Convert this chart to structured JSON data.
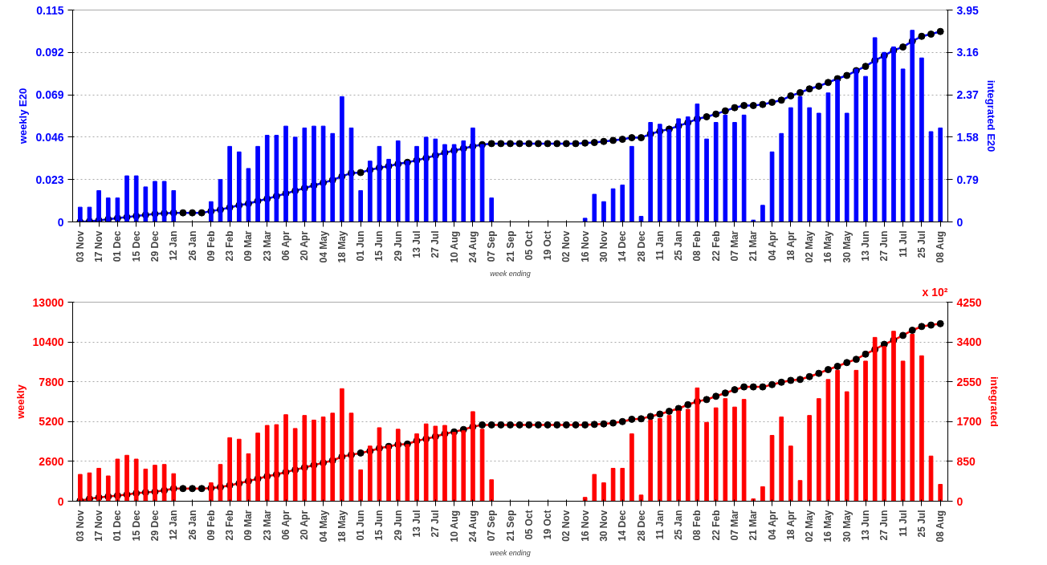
{
  "chart_data": [
    {
      "type": "bar",
      "xlabel": "week ending",
      "ylabel": "weekly E20",
      "y2label": "integrated E20",
      "categories": [
        "03 Nov",
        null,
        "17 Nov",
        null,
        "01 Dec",
        null,
        "15 Dec",
        null,
        "29 Dec",
        null,
        "12 Jan",
        null,
        "26 Jan",
        null,
        "09 Feb",
        null,
        "23 Feb",
        null,
        "09 Mar",
        null,
        "23 Mar",
        null,
        "06 Apr",
        null,
        "20 Apr",
        null,
        "04 May",
        null,
        "18 May",
        null,
        "01 Jun",
        null,
        "15 Jun",
        null,
        "29 Jun",
        null,
        "13 Jul",
        null,
        "27 Jul",
        null,
        "10 Aug",
        null,
        "24 Aug",
        null,
        "07 Sep",
        null,
        "21 Sep",
        null,
        "05 Oct",
        null,
        "19 Oct",
        null,
        "02 Nov",
        null,
        "16 Nov",
        null,
        "30 Nov",
        null,
        "14 Dec",
        null,
        "28 Dec",
        null,
        "11 Jan",
        null,
        "25 Jan",
        null,
        "08 Feb",
        null,
        "22 Feb",
        null,
        "07 Mar",
        null,
        "21 Mar",
        null,
        "04 Apr",
        null,
        "18 Apr",
        null,
        "02 May",
        null,
        "16 May",
        null,
        "30 May",
        null,
        "13 Jun",
        null,
        "27 Jun",
        null,
        "11 Jul",
        null,
        "25 Jul",
        null,
        "08 Aug"
      ],
      "ylim": [
        0,
        0.115
      ],
      "yticks": [
        0,
        0.023,
        0.046,
        0.069,
        0.092,
        0.115
      ],
      "y2lim": [
        0,
        3.95
      ],
      "y2ticks": [
        0,
        0.79,
        1.58,
        2.37,
        3.16,
        3.95
      ],
      "grid": "y",
      "series": [
        {
          "color": "#0000ff",
          "values": [
            0.008,
            0.008,
            0.017,
            0.013,
            0.013,
            0.025,
            0.025,
            0.019,
            0.022,
            0.022,
            0.017,
            0,
            0,
            0,
            0.011,
            0.023,
            0.041,
            0.038,
            0.029,
            0.041,
            0.047,
            0.047,
            0.052,
            0.046,
            0.051,
            0.052,
            0.052,
            0.048,
            0.068,
            0.051,
            0.017,
            0.033,
            0.041,
            0.034,
            0.044,
            0.033,
            0.041,
            0.046,
            0.045,
            0.042,
            0.042,
            0.044,
            0.051,
            0.042,
            0.013,
            0,
            0,
            0,
            0,
            0,
            0,
            0,
            0,
            0,
            0.002,
            0.015,
            0.011,
            0.018,
            0.02,
            0.041,
            0.003,
            0.054,
            0.053,
            0.05,
            0.056,
            0.057,
            0.064,
            0.045,
            0.054,
            0.058,
            0.054,
            0.058,
            0.001,
            0.009,
            0.038,
            0.048,
            0.062,
            0.068,
            0.062,
            0.059,
            0.07,
            0.077,
            0.059,
            0.083,
            0.079,
            0.1,
            0.092,
            0.095,
            0.083,
            0.104,
            0.089,
            0.049,
            0.051
          ]
        },
        {
          "type": "line",
          "axis": "y2",
          "color": "#0000ff",
          "marker": "circle",
          "values": [
            0,
            0.01,
            0.03,
            0.05,
            0.07,
            0.09,
            0.11,
            0.13,
            0.15,
            0.16,
            0.17,
            0.17,
            0.17,
            0.17,
            0.2,
            0.23,
            0.27,
            0.31,
            0.34,
            0.39,
            0.43,
            0.48,
            0.53,
            0.58,
            0.63,
            0.68,
            0.73,
            0.78,
            0.85,
            0.91,
            0.92,
            0.97,
            1.01,
            1.04,
            1.08,
            1.11,
            1.15,
            1.19,
            1.24,
            1.29,
            1.33,
            1.37,
            1.41,
            1.44,
            1.46,
            1.46,
            1.46,
            1.46,
            1.46,
            1.46,
            1.46,
            1.46,
            1.46,
            1.46,
            1.47,
            1.48,
            1.5,
            1.52,
            1.54,
            1.57,
            1.57,
            1.64,
            1.69,
            1.73,
            1.79,
            1.85,
            1.92,
            1.96,
            2.01,
            2.07,
            2.13,
            2.17,
            2.17,
            2.19,
            2.23,
            2.27,
            2.35,
            2.41,
            2.48,
            2.53,
            2.6,
            2.67,
            2.73,
            2.82,
            2.9,
            3.01,
            3.1,
            3.2,
            3.26,
            3.37,
            3.46,
            3.5,
            3.55
          ]
        }
      ]
    },
    {
      "type": "bar",
      "xlabel": "week ending",
      "ylabel": "weekly",
      "y2label": "integrated",
      "annotations": [
        "x 10²"
      ],
      "categories": [
        "03 Nov",
        null,
        "17 Nov",
        null,
        "01 Dec",
        null,
        "15 Dec",
        null,
        "29 Dec",
        null,
        "12 Jan",
        null,
        "26 Jan",
        null,
        "09 Feb",
        null,
        "23 Feb",
        null,
        "09 Mar",
        null,
        "23 Mar",
        null,
        "06 Apr",
        null,
        "20 Apr",
        null,
        "04 May",
        null,
        "18 May",
        null,
        "01 Jun",
        null,
        "15 Jun",
        null,
        "29 Jun",
        null,
        "13 Jul",
        null,
        "27 Jul",
        null,
        "10 Aug",
        null,
        "24 Aug",
        null,
        "07 Sep",
        null,
        "21 Sep",
        null,
        "05 Oct",
        null,
        "19 Oct",
        null,
        "02 Nov",
        null,
        "16 Nov",
        null,
        "30 Nov",
        null,
        "14 Dec",
        null,
        "28 Dec",
        null,
        "11 Jan",
        null,
        "25 Jan",
        null,
        "08 Feb",
        null,
        "22 Feb",
        null,
        "07 Mar",
        null,
        "21 Mar",
        null,
        "04 Apr",
        null,
        "18 Apr",
        null,
        "02 May",
        null,
        "16 May",
        null,
        "30 May",
        null,
        "13 Jun",
        null,
        "27 Jun",
        null,
        "11 Jul",
        null,
        "25 Jul",
        null,
        "08 Aug"
      ],
      "ylim": [
        0,
        13000
      ],
      "yticks": [
        0,
        2600,
        5200,
        7800,
        10400,
        13000
      ],
      "y2lim": [
        0,
        4250
      ],
      "y2ticks": [
        0,
        850,
        1700,
        2550,
        3400,
        4250
      ],
      "grid": "y",
      "series": [
        {
          "color": "#ff0000",
          "values": [
            1750,
            1850,
            2150,
            1650,
            2750,
            3000,
            2750,
            2100,
            2350,
            2400,
            1800,
            0,
            0,
            0,
            1200,
            2400,
            4150,
            4050,
            3100,
            4450,
            4950,
            5000,
            5650,
            4750,
            5600,
            5300,
            5500,
            5750,
            7350,
            5750,
            2050,
            3600,
            4800,
            3650,
            4700,
            3700,
            4400,
            5050,
            4900,
            4950,
            4500,
            4600,
            5850,
            4700,
            1400,
            0,
            0,
            0,
            0,
            0,
            0,
            0,
            0,
            0,
            250,
            1750,
            1200,
            2150,
            2150,
            4400,
            400,
            5300,
            5400,
            5600,
            5900,
            6000,
            7400,
            5150,
            6100,
            6700,
            6150,
            6650,
            150,
            950,
            4300,
            5500,
            3600,
            1350,
            5600,
            6700,
            7950,
            8550,
            7150,
            8550,
            9150,
            10700,
            10100,
            11100,
            9150,
            10900,
            9500,
            2950,
            1100
          ]
        },
        {
          "type": "line",
          "axis": "y2",
          "color": "#ff0000",
          "marker": "circle",
          "values": [
            10,
            50,
            80,
            100,
            120,
            140,
            170,
            190,
            200,
            230,
            270,
            270,
            270,
            270,
            280,
            300,
            340,
            380,
            430,
            480,
            530,
            570,
            620,
            670,
            720,
            770,
            820,
            870,
            950,
            990,
            1030,
            1070,
            1130,
            1170,
            1210,
            1220,
            1290,
            1330,
            1380,
            1440,
            1480,
            1530,
            1590,
            1630,
            1630,
            1630,
            1630,
            1630,
            1630,
            1630,
            1630,
            1630,
            1630,
            1630,
            1630,
            1640,
            1650,
            1670,
            1700,
            1750,
            1760,
            1810,
            1860,
            1920,
            1980,
            2060,
            2130,
            2170,
            2240,
            2310,
            2380,
            2440,
            2440,
            2440,
            2490,
            2540,
            2580,
            2600,
            2660,
            2730,
            2810,
            2880,
            2960,
            3030,
            3140,
            3240,
            3350,
            3440,
            3540,
            3650,
            3730,
            3760,
            3790
          ]
        }
      ]
    }
  ]
}
